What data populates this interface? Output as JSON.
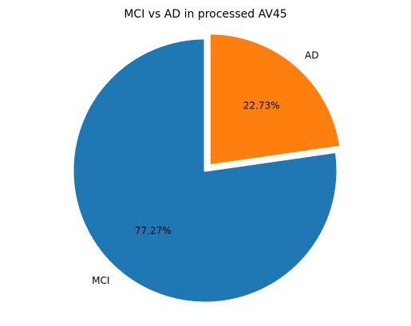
{
  "chart_data": {
    "type": "pie",
    "title": "MCI vs AD in processed AV45",
    "slices": [
      {
        "label": "MCI",
        "value": 77.27,
        "pct_label": "77.27%",
        "color": "#1f77b4",
        "explode": 0.0
      },
      {
        "label": "AD",
        "value": 22.73,
        "pct_label": "22.73%",
        "color": "#ff7f0e",
        "explode": 0.05
      }
    ],
    "start_angle_deg": 90,
    "direction": "counterclockwise",
    "legend": "none"
  }
}
